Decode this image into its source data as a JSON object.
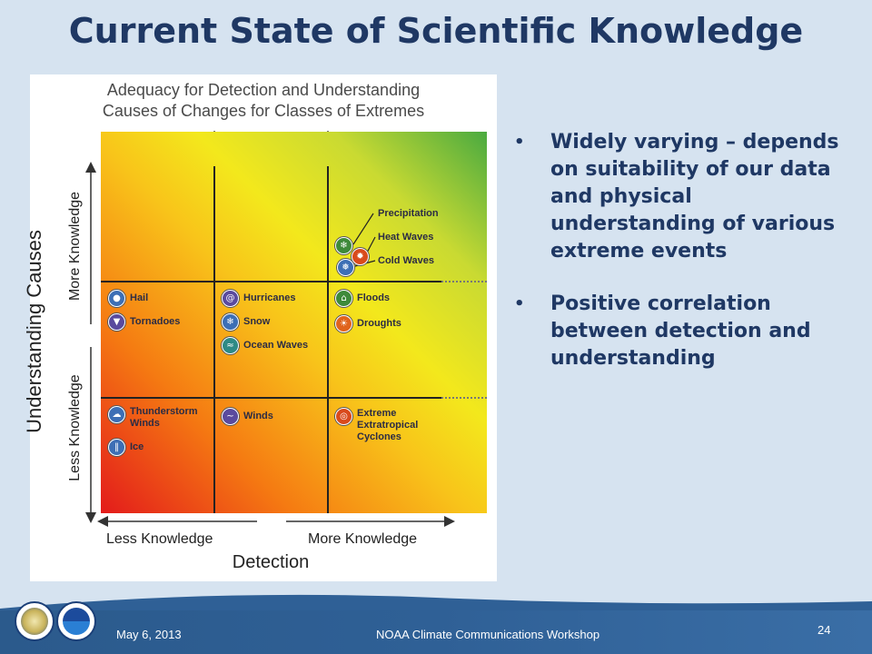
{
  "slide": {
    "title": "Current State of Scientific Knowledge",
    "footer": {
      "date": "May 6, 2013",
      "event": "NOAA Climate Communications Workshop",
      "page": "24"
    }
  },
  "figure": {
    "title_line1": "Adequacy for Detection and Understanding",
    "title_line2": "Causes of Changes for Classes of Extremes",
    "y_axis": {
      "title": "Understanding Causes",
      "upper": "More Knowledge",
      "lower": "Less Knowledge"
    },
    "x_axis": {
      "title": "Detection",
      "left": "Less Knowledge",
      "right": "More Knowledge"
    },
    "items": {
      "precipitation": {
        "label": "Precipitation",
        "icon": "precipitation-icon"
      },
      "heat_waves": {
        "label": "Heat Waves",
        "icon": "sun-icon"
      },
      "cold_waves": {
        "label": "Cold Waves",
        "icon": "snowflake-icon"
      },
      "hail": {
        "label": "Hail",
        "icon": "hail-icon"
      },
      "tornadoes": {
        "label": "Tornadoes",
        "icon": "tornado-icon"
      },
      "hurricanes": {
        "label": "Hurricanes",
        "icon": "hurricane-icon"
      },
      "snow": {
        "label": "Snow",
        "icon": "snowflake-icon"
      },
      "ocean_waves": {
        "label": "Ocean Waves",
        "icon": "wave-icon"
      },
      "floods": {
        "label": "Floods",
        "icon": "flood-icon"
      },
      "droughts": {
        "label": "Droughts",
        "icon": "drought-icon"
      },
      "thunderstorm_winds_1": "Thunderstorm",
      "thunderstorm_winds_2": "Winds",
      "ice": {
        "label": "Ice",
        "icon": "ice-icon"
      },
      "winds": {
        "label": "Winds",
        "icon": "wind-icon"
      },
      "extratropical_1": "Extreme",
      "extratropical_2": "Extratropical",
      "extratropical_3": "Cyclones"
    }
  },
  "bullets": [
    "Widely varying – depends on suitability of our data and physical understanding of various extreme events",
    "Positive correlation between detection and understanding"
  ],
  "colors": {
    "title": "#1f3864",
    "background": "#d6e3f0",
    "footer": "#2f6096"
  }
}
